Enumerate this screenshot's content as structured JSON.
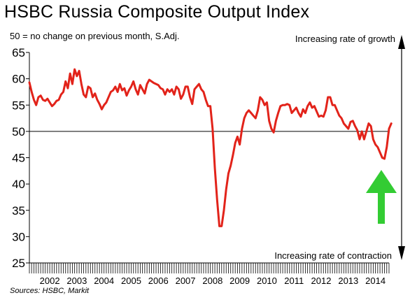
{
  "title": "HSBC Russia Composite Output Index",
  "subtitle": "50 = no change on previous month, S.Adj.",
  "source": "Sources: HSBC, Markit",
  "colors": {
    "series": "#e2231a",
    "arrow_fill": "#33cc33",
    "axis": "#000000"
  },
  "chart_data": {
    "type": "line",
    "title": "HSBC Russia Composite Output Index",
    "subtitle": "50 = no change on previous month, S.Adj.",
    "xlabel": "",
    "ylabel": "",
    "ylim": [
      25,
      65
    ],
    "yticks": [
      25,
      30,
      35,
      40,
      45,
      50,
      55,
      60,
      65
    ],
    "xlim": [
      2001.75,
      2015.0
    ],
    "xtick_labels": [
      "2002",
      "2003",
      "2004",
      "2005",
      "2006",
      "2007",
      "2008",
      "2009",
      "2010",
      "2011",
      "2012",
      "2013",
      "2014"
    ],
    "reference_line": 50,
    "grid": false,
    "annotations": {
      "top": "Increasing rate of growth",
      "bottom": "Increasing rate of contraction"
    },
    "series": [
      {
        "values_by_year": {
          "2001": [
            59.3,
            57.5,
            56.0
          ],
          "2002": [
            55.0,
            56.5,
            56.8,
            56.0,
            55.8,
            56.2,
            55.5,
            54.8,
            55.2,
            55.8,
            56.0,
            57.0
          ],
          "2003": [
            57.5,
            59.5,
            58.2,
            61.0,
            59.0,
            61.8,
            60.5,
            61.5,
            59.0,
            57.0,
            56.5,
            58.5
          ],
          "2004": [
            58.2,
            56.5,
            57.2,
            56.0,
            55.2,
            54.2,
            55.0,
            55.5,
            56.5,
            57.5,
            57.8,
            58.5
          ],
          "2005": [
            57.5,
            59.0,
            57.8,
            58.2,
            56.8,
            57.8,
            58.5,
            59.5,
            58.0,
            57.0,
            58.8,
            58.0
          ],
          "2006": [
            57.2,
            59.0,
            59.8,
            59.5,
            59.2,
            59.0,
            58.8,
            58.2,
            58.0,
            57.0,
            58.0,
            57.5
          ],
          "2007": [
            58.0,
            57.0,
            58.5,
            58.0,
            56.2,
            57.0,
            58.5,
            58.5,
            56.5,
            55.2,
            58.0,
            58.5
          ],
          "2008": [
            59.0,
            58.0,
            57.5,
            56.0,
            54.8,
            54.8,
            50.5,
            43.0,
            37.0,
            32.0,
            32.0,
            35.0
          ],
          "2009": [
            39.0,
            42.0,
            43.5,
            45.5,
            47.8,
            49.0,
            47.5,
            50.5,
            52.5,
            53.5,
            54.0,
            53.5
          ],
          "2010": [
            53.0,
            52.5,
            54.0,
            56.5,
            56.0,
            55.0,
            55.5,
            52.0,
            50.5,
            49.8,
            52.0,
            53.5
          ],
          "2011": [
            54.8,
            55.0,
            55.0,
            55.2,
            55.0,
            53.5,
            54.0,
            54.5,
            53.5,
            52.8,
            54.2,
            53.5
          ],
          "2012": [
            54.8,
            55.5,
            54.5,
            54.8,
            53.8,
            52.8,
            53.0,
            52.8,
            54.0,
            56.5,
            56.5,
            55.0
          ],
          "2013": [
            55.0,
            54.0,
            53.0,
            52.5,
            51.5,
            51.0,
            50.5,
            51.8,
            52.0,
            51.0,
            50.2,
            48.5
          ],
          "2014": [
            50.0,
            48.5,
            50.0,
            51.5,
            51.0,
            48.5,
            47.5,
            47.0,
            46.0,
            45.0,
            44.8,
            47.0
          ],
          "2015": [
            50.5,
            51.5
          ]
        }
      }
    ]
  }
}
